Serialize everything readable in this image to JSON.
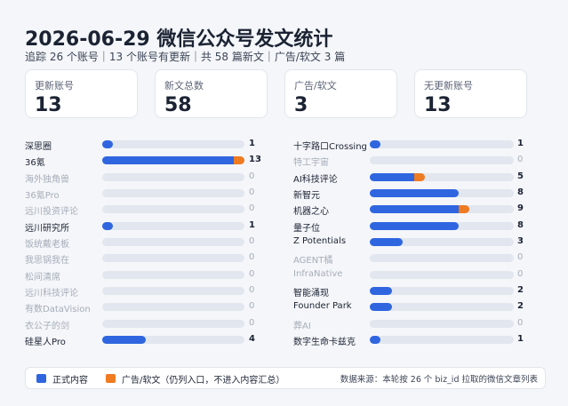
{
  "title": "2026-06-29 微信公众号发文统计",
  "subtitle": "追踪 26 个账号｜13 个账号有更新｜共 58 篇新文｜广告/软文 3 篇",
  "cards": [
    {
      "label": "更新账号",
      "value": 13
    },
    {
      "label": "新文总数",
      "value": 58
    },
    {
      "label": "广告/软文",
      "value": 3
    },
    {
      "label": "无更新账号",
      "value": 13
    }
  ],
  "scale_max": 13,
  "colors": {
    "normal": "#2f66e0",
    "ad": "#ef7b22"
  },
  "columns": [
    [
      {
        "name": "深思圈",
        "total": 1,
        "normal": 1,
        "ad": 0
      },
      {
        "name": "36氪",
        "total": 13,
        "normal": 12,
        "ad": 1
      },
      {
        "name": "海外独角兽",
        "total": 0,
        "normal": 0,
        "ad": 0
      },
      {
        "name": "36氪Pro",
        "total": 0,
        "normal": 0,
        "ad": 0
      },
      {
        "name": "远川投资评论",
        "total": 0,
        "normal": 0,
        "ad": 0
      },
      {
        "name": "远川研究所",
        "total": 1,
        "normal": 1,
        "ad": 0
      },
      {
        "name": "饭统戴老板",
        "total": 0,
        "normal": 0,
        "ad": 0
      },
      {
        "name": "我思锅我在",
        "total": 0,
        "normal": 0,
        "ad": 0
      },
      {
        "name": "松间清席",
        "total": 0,
        "normal": 0,
        "ad": 0
      },
      {
        "name": "远川科技评论",
        "total": 0,
        "normal": 0,
        "ad": 0
      },
      {
        "name": "有数DataVision",
        "total": 0,
        "normal": 0,
        "ad": 0
      },
      {
        "name": "衣公子的剑",
        "total": 0,
        "normal": 0,
        "ad": 0
      },
      {
        "name": "硅星人Pro",
        "total": 4,
        "normal": 4,
        "ad": 0
      }
    ],
    [
      {
        "name": "十字路口Crossing",
        "total": 1,
        "normal": 1,
        "ad": 0
      },
      {
        "name": "特工宇宙",
        "total": 0,
        "normal": 0,
        "ad": 0
      },
      {
        "name": "AI科技评论",
        "total": 5,
        "normal": 4,
        "ad": 1
      },
      {
        "name": "新智元",
        "total": 8,
        "normal": 8,
        "ad": 0
      },
      {
        "name": "机器之心",
        "total": 9,
        "normal": 8,
        "ad": 1
      },
      {
        "name": "量子位",
        "total": 8,
        "normal": 8,
        "ad": 0
      },
      {
        "name": "Z Potentials",
        "total": 3,
        "normal": 3,
        "ad": 0
      },
      {
        "name": "AGENT橘",
        "total": 0,
        "normal": 0,
        "ad": 0
      },
      {
        "name": "InfraNative",
        "total": 0,
        "normal": 0,
        "ad": 0
      },
      {
        "name": "智能涌现",
        "total": 2,
        "normal": 2,
        "ad": 0
      },
      {
        "name": "Founder Park",
        "total": 2,
        "normal": 2,
        "ad": 0
      },
      {
        "name": "葬AI",
        "total": 0,
        "normal": 0,
        "ad": 0
      },
      {
        "name": "数字生命卡兹克",
        "total": 1,
        "normal": 1,
        "ad": 0
      }
    ]
  ],
  "legend": {
    "normal": "正式内容",
    "ad": "广告/软文（仍列入口，不进入内容汇总）"
  },
  "footer": "数据来源：本轮按 26 个 biz_id 拉取的微信文章列表"
}
